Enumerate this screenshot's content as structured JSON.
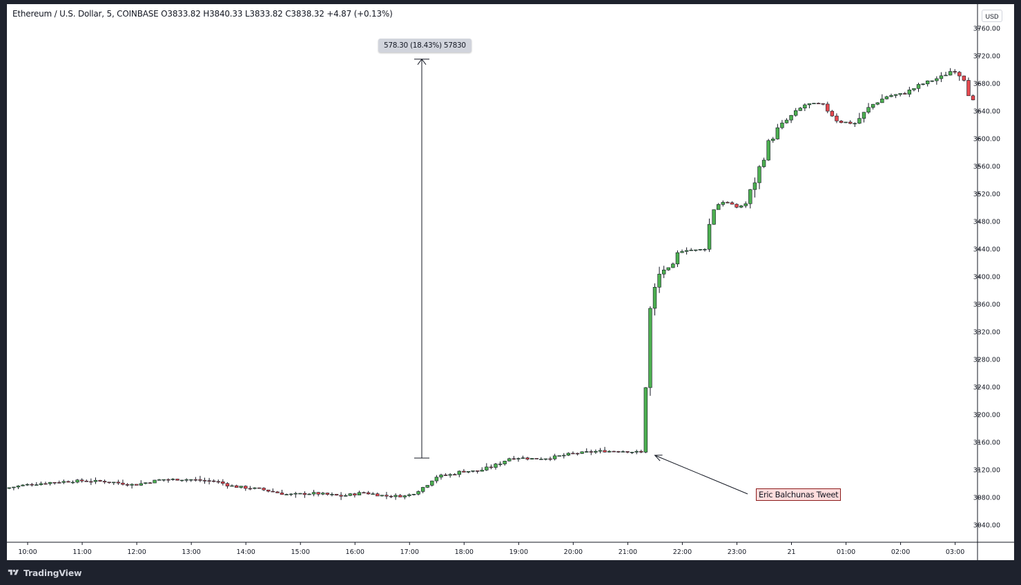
{
  "header": {
    "title": "Ethereum / U.S. Dollar, 5, COINBASE  O3833.82  H3840.33  L3833.82  C3838.32  +4.87 (+0.13%)"
  },
  "currency": "USD",
  "measure_label": "578.30 (18.43%) 57830",
  "annotation_label": "Eric Balchunas Tweet",
  "footer": {
    "brand": "TradingView"
  },
  "colors": {
    "up": "#4caf50",
    "down": "#e5494f",
    "wick": "#131722",
    "background": "#ffffff",
    "frame": "#1e222d",
    "annotation_fill": "#fddddd",
    "annotation_border": "#8b1a1a"
  },
  "chart_data": {
    "type": "candlestick",
    "symbol": "Ethereum / U.S. Dollar",
    "interval": "5",
    "exchange": "COINBASE",
    "last_bar": {
      "open": 3833.82,
      "high": 3840.33,
      "low": 3833.82,
      "close": 3838.32,
      "change": 4.87,
      "change_pct": 0.13
    },
    "y_ticks": [
      3040,
      3080,
      3120,
      3160,
      3200,
      3240,
      3280,
      3320,
      3360,
      3400,
      3440,
      3480,
      3520,
      3560,
      3600,
      3640,
      3680,
      3720,
      3760
    ],
    "y_tick_labels": [
      "3040.00",
      "3080.00",
      "3120.00",
      "3160.00",
      "3200.00",
      "3240.00",
      "3280.00",
      "3320.00",
      "3360.00",
      "3400.00",
      "3440.00",
      "3480.00",
      "3520.00",
      "3560.00",
      "3600.00",
      "3640.00",
      "3680.00",
      "3720.00",
      "3760.00"
    ],
    "x_tick_labels": [
      "10:00",
      "11:00",
      "12:00",
      "13:00",
      "14:00",
      "15:00",
      "16:00",
      "17:00",
      "18:00",
      "19:00",
      "20:00",
      "21:00",
      "22:00",
      "23:00",
      "21",
      "01:00",
      "02:00",
      "03:00"
    ],
    "ylim": [
      3015,
      3795
    ],
    "xlim_hours": [
      9.62,
      27.41
    ],
    "measure": {
      "from": 3137,
      "to": 3715.3,
      "change": 578.3,
      "change_pct": 18.43,
      "ticks": 57830
    },
    "price_path": [
      [
        9.62,
        3093
      ],
      [
        10.0,
        3098
      ],
      [
        10.5,
        3102
      ],
      [
        11.0,
        3104
      ],
      [
        11.5,
        3103
      ],
      [
        12.0,
        3098
      ],
      [
        12.5,
        3106
      ],
      [
        13.0,
        3106
      ],
      [
        13.5,
        3103
      ],
      [
        13.8,
        3096
      ],
      [
        14.3,
        3092
      ],
      [
        14.8,
        3084
      ],
      [
        15.3,
        3086
      ],
      [
        15.8,
        3082
      ],
      [
        16.2,
        3087
      ],
      [
        16.6,
        3082
      ],
      [
        17.0,
        3082
      ],
      [
        17.3,
        3095
      ],
      [
        17.5,
        3110
      ],
      [
        17.8,
        3113
      ],
      [
        18.0,
        3118
      ],
      [
        18.3,
        3118
      ],
      [
        18.6,
        3126
      ],
      [
        18.9,
        3138
      ],
      [
        19.3,
        3136
      ],
      [
        19.6,
        3137
      ],
      [
        20.0,
        3143
      ],
      [
        20.5,
        3147
      ],
      [
        21.0,
        3147
      ],
      [
        21.3,
        3145
      ],
      [
        21.4,
        3287
      ],
      [
        21.45,
        3350
      ],
      [
        21.55,
        3385
      ],
      [
        21.65,
        3410
      ],
      [
        21.85,
        3412
      ],
      [
        22.0,
        3440
      ],
      [
        22.3,
        3438
      ],
      [
        22.45,
        3440
      ],
      [
        22.6,
        3500
      ],
      [
        22.8,
        3510
      ],
      [
        23.0,
        3500
      ],
      [
        23.2,
        3505
      ],
      [
        23.4,
        3545
      ],
      [
        23.6,
        3590
      ],
      [
        23.8,
        3615
      ],
      [
        24.0,
        3630
      ],
      [
        24.3,
        3650
      ],
      [
        24.6,
        3650
      ],
      [
        24.9,
        3625
      ],
      [
        25.2,
        3622
      ],
      [
        25.5,
        3648
      ],
      [
        25.8,
        3662
      ],
      [
        26.1,
        3665
      ],
      [
        26.4,
        3678
      ],
      [
        26.8,
        3690
      ],
      [
        27.0,
        3700
      ],
      [
        27.2,
        3688
      ],
      [
        27.41,
        3642
      ]
    ],
    "grid": false,
    "annotations": [
      {
        "type": "arrow",
        "text": "Eric Balchunas Tweet",
        "time_hours": 21.42,
        "price": 3145
      }
    ]
  }
}
